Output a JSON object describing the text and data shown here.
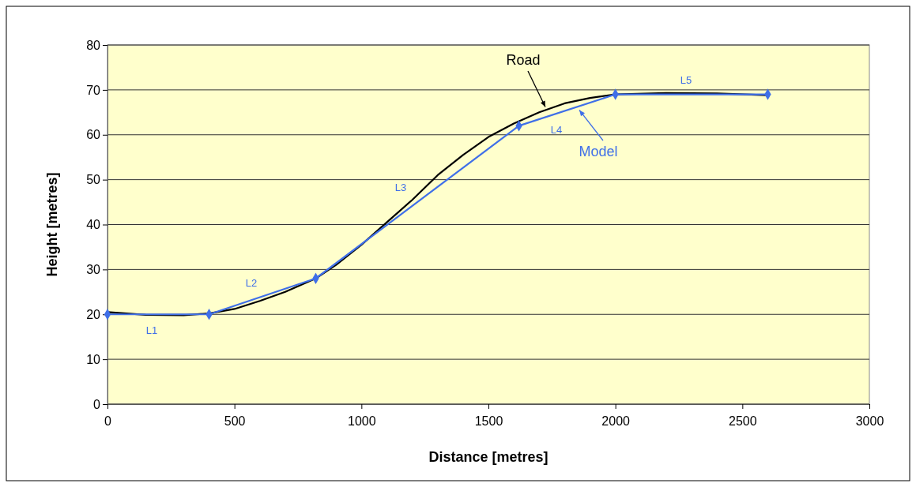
{
  "chart_data": {
    "type": "line",
    "xlabel": "Distance [metres]",
    "ylabel": "Height [metres]",
    "xlim": [
      0,
      3000
    ],
    "xticks": [
      0,
      500,
      1000,
      1500,
      2000,
      2500,
      3000
    ],
    "ylim": [
      0,
      80
    ],
    "yticks": [
      0,
      10,
      20,
      30,
      40,
      50,
      60,
      70,
      80
    ],
    "grid": "y",
    "legend": "right",
    "line_style": "solid",
    "series": [
      {
        "name": "Road",
        "color": "#000000",
        "marker": "none",
        "x": [
          0,
          150,
          300,
          400,
          500,
          600,
          700,
          820,
          900,
          1000,
          1100,
          1200,
          1300,
          1400,
          1500,
          1600,
          1700,
          1800,
          1900,
          2000,
          2200,
          2400,
          2600
        ],
        "values": [
          20.5,
          19.9,
          19.8,
          20.2,
          21.2,
          23,
          25,
          28,
          31,
          35.5,
          40.5,
          45.5,
          51,
          55.5,
          59.5,
          62.5,
          65,
          67,
          68.2,
          69,
          69.3,
          69.2,
          68.8
        ]
      },
      {
        "name": "Model",
        "color": "#3f6fe8",
        "marker": "diamond",
        "x": [
          0,
          400,
          820,
          1620,
          2000,
          2600
        ],
        "values": [
          20,
          20,
          28,
          62,
          69,
          69
        ]
      }
    ],
    "annotations": [
      "L1",
      "L2",
      "L3",
      "L4",
      "L5"
    ]
  }
}
